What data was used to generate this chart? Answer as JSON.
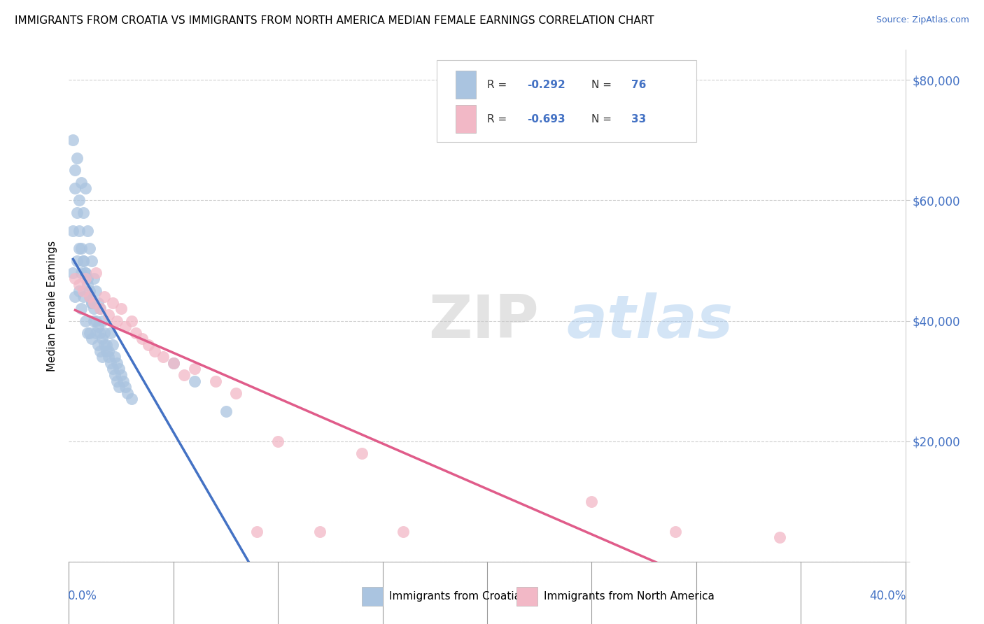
{
  "title": "IMMIGRANTS FROM CROATIA VS IMMIGRANTS FROM NORTH AMERICA MEDIAN FEMALE EARNINGS CORRELATION CHART",
  "source": "Source: ZipAtlas.com",
  "ylabel": "Median Female Earnings",
  "xlim": [
    0.0,
    0.4
  ],
  "ylim": [
    0,
    85000
  ],
  "croatia_color": "#aac4e0",
  "croatia_color_line": "#4472c4",
  "north_america_color": "#f2b8c6",
  "north_america_color_line": "#e05c8a",
  "croatia_label": "Immigrants from Croatia",
  "north_america_label": "Immigrants from North America",
  "grid_color": "#d0d0d0",
  "watermark_zip": "ZIP",
  "watermark_atlas": "atlas",
  "croatia_scatter_x": [
    0.002,
    0.002,
    0.003,
    0.003,
    0.004,
    0.004,
    0.005,
    0.005,
    0.005,
    0.006,
    0.006,
    0.006,
    0.007,
    0.007,
    0.007,
    0.008,
    0.008,
    0.008,
    0.009,
    0.009,
    0.009,
    0.01,
    0.01,
    0.01,
    0.011,
    0.011,
    0.011,
    0.012,
    0.012,
    0.013,
    0.013,
    0.014,
    0.014,
    0.015,
    0.015,
    0.016,
    0.016,
    0.017,
    0.018,
    0.019,
    0.02,
    0.021,
    0.022,
    0.023,
    0.024,
    0.025,
    0.026,
    0.027,
    0.028,
    0.03,
    0.002,
    0.003,
    0.004,
    0.005,
    0.006,
    0.007,
    0.008,
    0.009,
    0.01,
    0.011,
    0.012,
    0.013,
    0.014,
    0.015,
    0.016,
    0.017,
    0.018,
    0.019,
    0.02,
    0.021,
    0.022,
    0.023,
    0.024,
    0.05,
    0.06,
    0.075
  ],
  "croatia_scatter_y": [
    55000,
    48000,
    62000,
    44000,
    67000,
    50000,
    60000,
    52000,
    45000,
    63000,
    48000,
    42000,
    58000,
    50000,
    44000,
    62000,
    48000,
    40000,
    55000,
    47000,
    38000,
    52000,
    45000,
    38000,
    50000,
    43000,
    37000,
    47000,
    40000,
    45000,
    38000,
    43000,
    36000,
    42000,
    35000,
    40000,
    34000,
    38000,
    36000,
    35000,
    38000,
    36000,
    34000,
    33000,
    32000,
    31000,
    30000,
    29000,
    28000,
    27000,
    70000,
    65000,
    58000,
    55000,
    52000,
    50000,
    48000,
    46000,
    44000,
    43000,
    42000,
    40000,
    39000,
    38000,
    37000,
    36000,
    35000,
    34000,
    33000,
    32000,
    31000,
    30000,
    29000,
    33000,
    30000,
    25000
  ],
  "north_america_scatter_x": [
    0.003,
    0.005,
    0.007,
    0.008,
    0.01,
    0.012,
    0.013,
    0.015,
    0.017,
    0.019,
    0.021,
    0.023,
    0.025,
    0.027,
    0.03,
    0.032,
    0.035,
    0.038,
    0.041,
    0.045,
    0.05,
    0.055,
    0.06,
    0.07,
    0.08,
    0.09,
    0.1,
    0.12,
    0.14,
    0.16,
    0.25,
    0.29,
    0.34
  ],
  "north_america_scatter_y": [
    47000,
    46000,
    45000,
    47000,
    44000,
    43000,
    48000,
    42000,
    44000,
    41000,
    43000,
    40000,
    42000,
    39000,
    40000,
    38000,
    37000,
    36000,
    35000,
    34000,
    33000,
    31000,
    32000,
    30000,
    28000,
    5000,
    20000,
    5000,
    18000,
    5000,
    10000,
    5000,
    4000
  ]
}
